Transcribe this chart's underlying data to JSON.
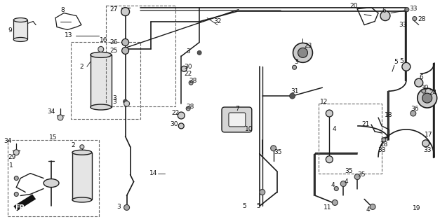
{
  "bg_color": "#f5f5f0",
  "fig_width": 6.27,
  "fig_height": 3.2,
  "dpi": 100,
  "line_color": "#1a1a1a",
  "label_color": "#111111",
  "label_fontsize": 6.0,
  "lw": 1.2
}
